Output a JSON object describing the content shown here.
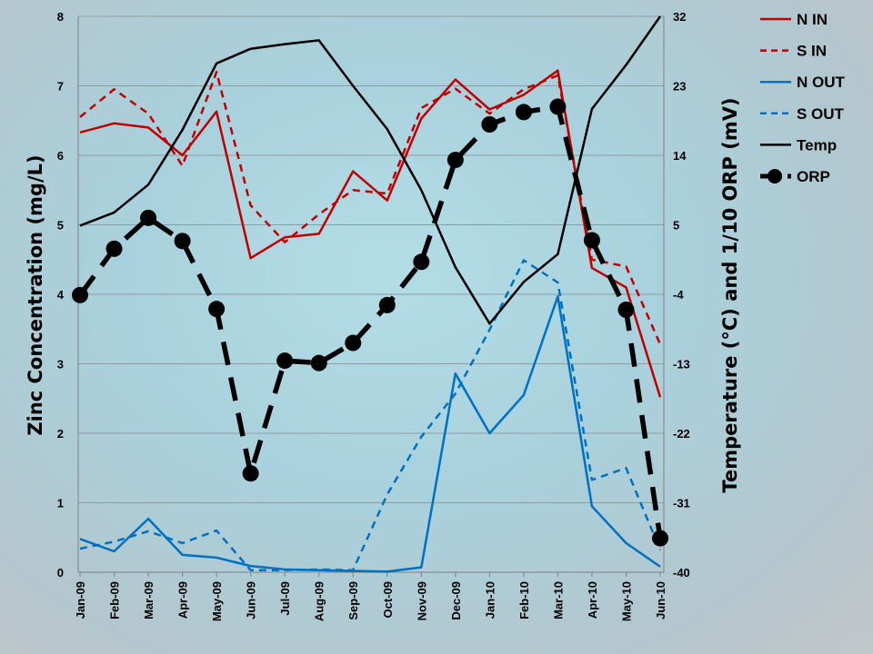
{
  "chart_data": {
    "type": "line",
    "categories": [
      "Jan-09",
      "Feb-09",
      "Mar-09",
      "Apr-09",
      "May-09",
      "Jun-09",
      "Jul-09",
      "Aug-09",
      "Sep-09",
      "Oct-09",
      "Nov-09",
      "Dec-09",
      "Jan-10",
      "Feb-10",
      "Mar-10",
      "Apr-10",
      "May-10",
      "Jun-10"
    ],
    "ylabel": "Zinc Concentration (mg/L)",
    "y2label": "Temperature (°C) and 1/10 ORP (mV)",
    "ylim": [
      0,
      8
    ],
    "y2lim": [
      -40,
      32
    ],
    "yticks": [
      "0",
      "1",
      "2",
      "3",
      "4",
      "5",
      "6",
      "7",
      "8"
    ],
    "y2ticks": [
      "-40",
      "-31",
      "-22",
      "-13",
      "-4",
      "5",
      "14",
      "23",
      "32"
    ],
    "grid": "horizontal",
    "legend_position": "top-right",
    "series": [
      {
        "name": "N IN",
        "axis": "left",
        "color": "#c00000",
        "dash": "solid",
        "marker": false,
        "values": [
          6.33,
          6.46,
          6.4,
          6.0,
          6.63,
          4.52,
          4.82,
          4.87,
          5.77,
          5.35,
          6.53,
          7.09,
          6.66,
          6.87,
          7.22,
          4.38,
          4.1,
          2.52
        ]
      },
      {
        "name": "S IN",
        "axis": "left",
        "color": "#c00000",
        "dash": "dashed",
        "marker": false,
        "values": [
          6.55,
          6.95,
          6.6,
          5.85,
          7.2,
          5.28,
          4.75,
          5.15,
          5.5,
          5.45,
          6.68,
          6.96,
          6.6,
          6.95,
          7.15,
          4.5,
          4.4,
          3.28
        ]
      },
      {
        "name": "N OUT",
        "axis": "left",
        "color": "#0070c0",
        "dash": "solid",
        "marker": false,
        "values": [
          0.48,
          0.3,
          0.77,
          0.25,
          0.21,
          0.09,
          0.04,
          0.03,
          0.02,
          0.01,
          0.07,
          2.86,
          2.0,
          2.55,
          3.97,
          0.95,
          0.42,
          0.08
        ]
      },
      {
        "name": "S OUT",
        "axis": "left",
        "color": "#0070c0",
        "dash": "dashed",
        "marker": false,
        "values": [
          0.34,
          0.44,
          0.59,
          0.42,
          0.6,
          0.03,
          0.03,
          0.04,
          0.03,
          1.12,
          1.95,
          2.57,
          3.49,
          4.49,
          4.17,
          1.33,
          1.5,
          0.32
        ]
      },
      {
        "name": "Temp",
        "axis": "right",
        "color": "#000000",
        "dash": "solid",
        "marker": false,
        "values": [
          4.9,
          6.6,
          10.2,
          17.3,
          25.9,
          27.8,
          28.4,
          28.9,
          23.0,
          17.4,
          9.5,
          -0.5,
          -7.8,
          -2.4,
          1.2,
          20.0,
          25.7,
          32.0
        ]
      },
      {
        "name": "ORP",
        "axis": "right",
        "color": "#000000",
        "dash": "dashed",
        "marker": true,
        "values": [
          -4.1,
          1.9,
          5.9,
          2.9,
          -5.9,
          -27.2,
          -12.6,
          -12.9,
          -10.3,
          -5.4,
          0.2,
          13.4,
          18.0,
          19.6,
          20.3,
          3.0,
          -6.0,
          -35.6
        ]
      }
    ]
  }
}
